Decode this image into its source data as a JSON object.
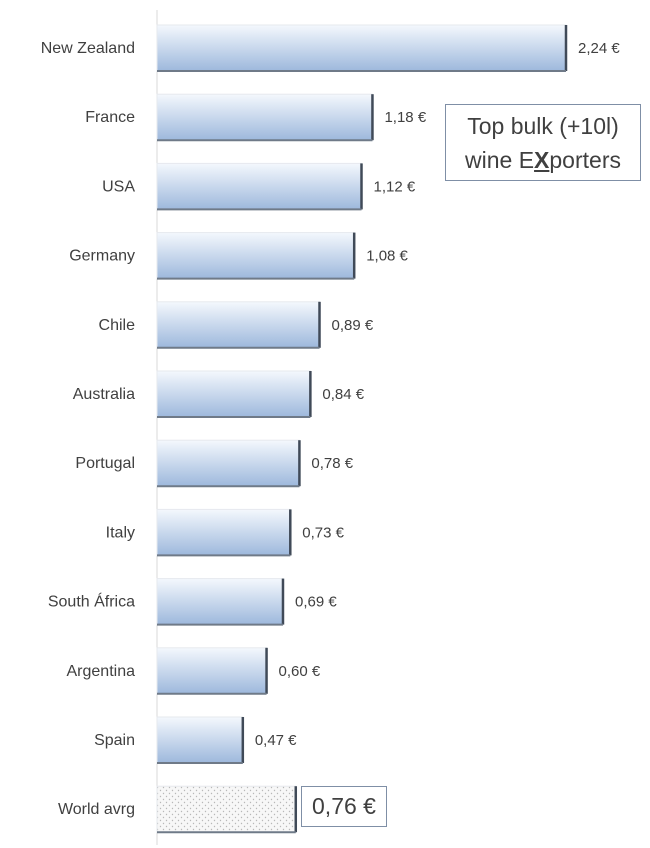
{
  "chart_data": {
    "type": "bar",
    "orientation": "horizontal",
    "categories": [
      "New Zealand",
      "France",
      "USA",
      "Germany",
      "Chile",
      "Australia",
      "Portugal",
      "Italy",
      "South África",
      "Argentina",
      "Spain",
      "World avrg"
    ],
    "values": [
      2.24,
      1.18,
      1.12,
      1.08,
      0.89,
      0.84,
      0.78,
      0.73,
      0.69,
      0.6,
      0.47,
      0.76
    ],
    "data_labels": [
      "2,24 €",
      "1,18 €",
      "1,12 €",
      "1,08 €",
      "0,89 €",
      "0,84 €",
      "0,78 €",
      "0,73 €",
      "0,69 €",
      "0,60 €",
      "0,47 €",
      "0,76 €"
    ],
    "highlight_category": "World avrg",
    "xlim": [
      0,
      2.24
    ],
    "grid": false,
    "colors": {
      "bar_top": "#ffffff",
      "bar_bottom": "#9db8dc",
      "bar_edge": "#404a58",
      "text": "#404040",
      "box_border": "#7f8fa6"
    },
    "annotation": {
      "line1": "Top bulk (+10l)",
      "line2_pre": "wine E",
      "line2_x": "X",
      "line2_post": "porters"
    }
  }
}
